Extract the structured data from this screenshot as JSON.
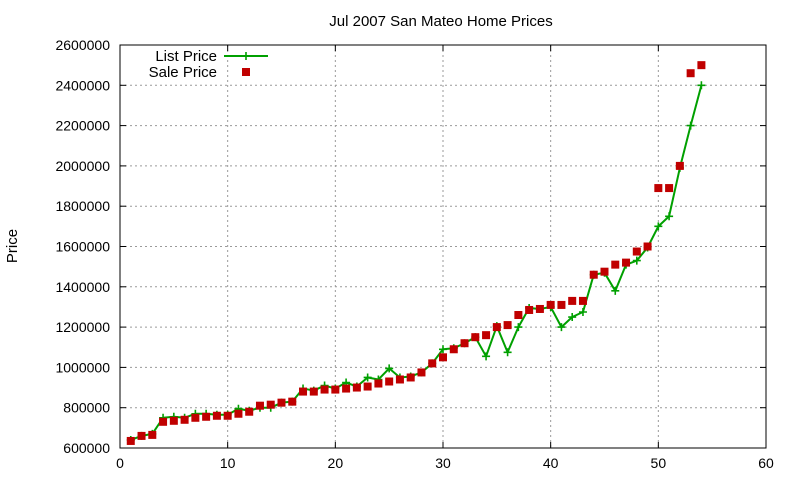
{
  "chart_data": {
    "type": "line",
    "title": "Jul 2007 San Mateo Home Prices",
    "xlabel": "",
    "ylabel": "Price",
    "xlim": [
      0,
      60
    ],
    "ylim": [
      600000,
      2600000
    ],
    "x_ticks": [
      0,
      10,
      20,
      30,
      40,
      50,
      60
    ],
    "y_ticks": [
      600000,
      800000,
      1000000,
      1200000,
      1400000,
      1600000,
      1800000,
      2000000,
      2200000,
      2400000,
      2600000
    ],
    "grid": true,
    "legend_position": "top-left",
    "series": [
      {
        "name": "List Price",
        "style": "lines+points",
        "color": "#00a000",
        "marker": "plus",
        "points": [
          [
            1,
            640000
          ],
          [
            2,
            660000
          ],
          [
            3,
            670000
          ],
          [
            4,
            750000
          ],
          [
            5,
            755000
          ],
          [
            6,
            750000
          ],
          [
            7,
            770000
          ],
          [
            8,
            770000
          ],
          [
            9,
            765000
          ],
          [
            10,
            765000
          ],
          [
            11,
            795000
          ],
          [
            12,
            785000
          ],
          [
            13,
            800000
          ],
          [
            14,
            800000
          ],
          [
            15,
            825000
          ],
          [
            16,
            830000
          ],
          [
            17,
            895000
          ],
          [
            18,
            885000
          ],
          [
            19,
            910000
          ],
          [
            20,
            895000
          ],
          [
            21,
            925000
          ],
          [
            22,
            905000
          ],
          [
            23,
            950000
          ],
          [
            24,
            940000
          ],
          [
            25,
            995000
          ],
          [
            26,
            950000
          ],
          [
            27,
            955000
          ],
          [
            28,
            975000
          ],
          [
            29,
            1020000
          ],
          [
            30,
            1090000
          ],
          [
            31,
            1095000
          ],
          [
            32,
            1120000
          ],
          [
            33,
            1150000
          ],
          [
            34,
            1055000
          ],
          [
            35,
            1205000
          ],
          [
            36,
            1075000
          ],
          [
            37,
            1200000
          ],
          [
            38,
            1295000
          ],
          [
            39,
            1290000
          ],
          [
            40,
            1300000
          ],
          [
            41,
            1200000
          ],
          [
            42,
            1250000
          ],
          [
            43,
            1275000
          ],
          [
            44,
            1460000
          ],
          [
            45,
            1470000
          ],
          [
            46,
            1380000
          ],
          [
            47,
            1510000
          ],
          [
            48,
            1530000
          ],
          [
            49,
            1595000
          ],
          [
            50,
            1700000
          ],
          [
            51,
            1750000
          ],
          [
            52,
            1990000
          ],
          [
            53,
            2200000
          ],
          [
            54,
            2400000
          ]
        ]
      },
      {
        "name": "Sale Price",
        "style": "points",
        "color": "#c00000",
        "marker": "square",
        "points": [
          [
            1,
            635000
          ],
          [
            2,
            660000
          ],
          [
            3,
            665000
          ],
          [
            4,
            730000
          ],
          [
            5,
            735000
          ],
          [
            6,
            740000
          ],
          [
            7,
            750000
          ],
          [
            8,
            755000
          ],
          [
            9,
            760000
          ],
          [
            10,
            760000
          ],
          [
            11,
            770000
          ],
          [
            12,
            780000
          ],
          [
            13,
            810000
          ],
          [
            14,
            815000
          ],
          [
            15,
            825000
          ],
          [
            16,
            830000
          ],
          [
            17,
            880000
          ],
          [
            18,
            880000
          ],
          [
            19,
            890000
          ],
          [
            20,
            890000
          ],
          [
            21,
            895000
          ],
          [
            22,
            900000
          ],
          [
            23,
            905000
          ],
          [
            24,
            920000
          ],
          [
            25,
            930000
          ],
          [
            26,
            940000
          ],
          [
            27,
            950000
          ],
          [
            28,
            975000
          ],
          [
            29,
            1020000
          ],
          [
            30,
            1050000
          ],
          [
            31,
            1090000
          ],
          [
            32,
            1120000
          ],
          [
            33,
            1150000
          ],
          [
            34,
            1160000
          ],
          [
            35,
            1200000
          ],
          [
            36,
            1210000
          ],
          [
            37,
            1260000
          ],
          [
            38,
            1285000
          ],
          [
            39,
            1290000
          ],
          [
            40,
            1310000
          ],
          [
            41,
            1310000
          ],
          [
            42,
            1330000
          ],
          [
            43,
            1330000
          ],
          [
            44,
            1460000
          ],
          [
            45,
            1475000
          ],
          [
            46,
            1510000
          ],
          [
            47,
            1520000
          ],
          [
            48,
            1575000
          ],
          [
            49,
            1600000
          ],
          [
            50,
            1890000
          ],
          [
            51,
            1890000
          ],
          [
            52,
            2000000
          ],
          [
            53,
            2460000
          ],
          [
            54,
            2500000
          ]
        ]
      }
    ]
  }
}
